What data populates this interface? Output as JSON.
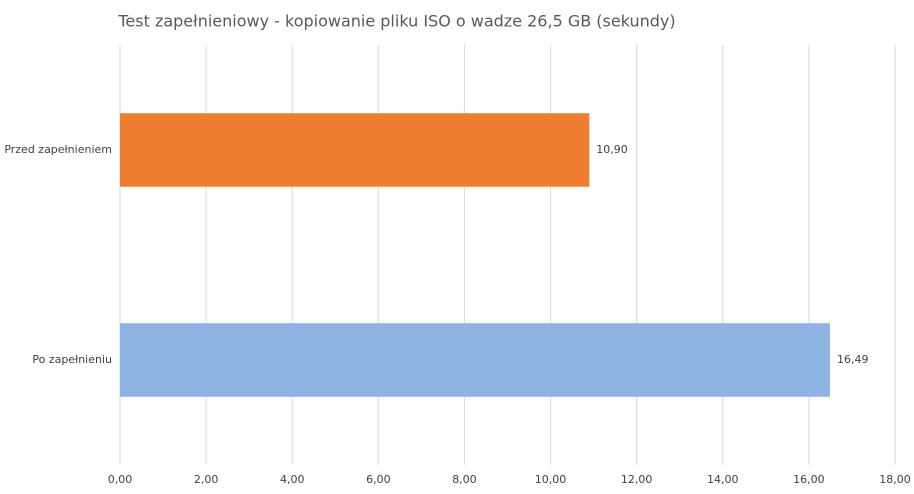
{
  "chart_data": {
    "type": "hbar",
    "title": "Test zapełnieniowy - kopiowanie pliku ISO o wadze 26,5 GB (sekundy)",
    "categories": [
      "Przed zapełnieniem",
      "Po zapełnieniu"
    ],
    "values": [
      10.9,
      16.49
    ],
    "value_labels": [
      "10,90",
      "16,49"
    ],
    "colors": [
      "#ed7d31",
      "#8eb4e3"
    ],
    "xlim": [
      0,
      18
    ],
    "xticks": [
      {
        "value": 0,
        "label": "0,00"
      },
      {
        "value": 2,
        "label": "2,00"
      },
      {
        "value": 4,
        "label": "4,00"
      },
      {
        "value": 6,
        "label": "6,00"
      },
      {
        "value": 8,
        "label": "8,00"
      },
      {
        "value": 10,
        "label": "10,00"
      },
      {
        "value": 12,
        "label": "12,00"
      },
      {
        "value": 14,
        "label": "14,00"
      },
      {
        "value": 16,
        "label": "16,00"
      },
      {
        "value": 18,
        "label": "18,00"
      }
    ],
    "grid": true
  }
}
